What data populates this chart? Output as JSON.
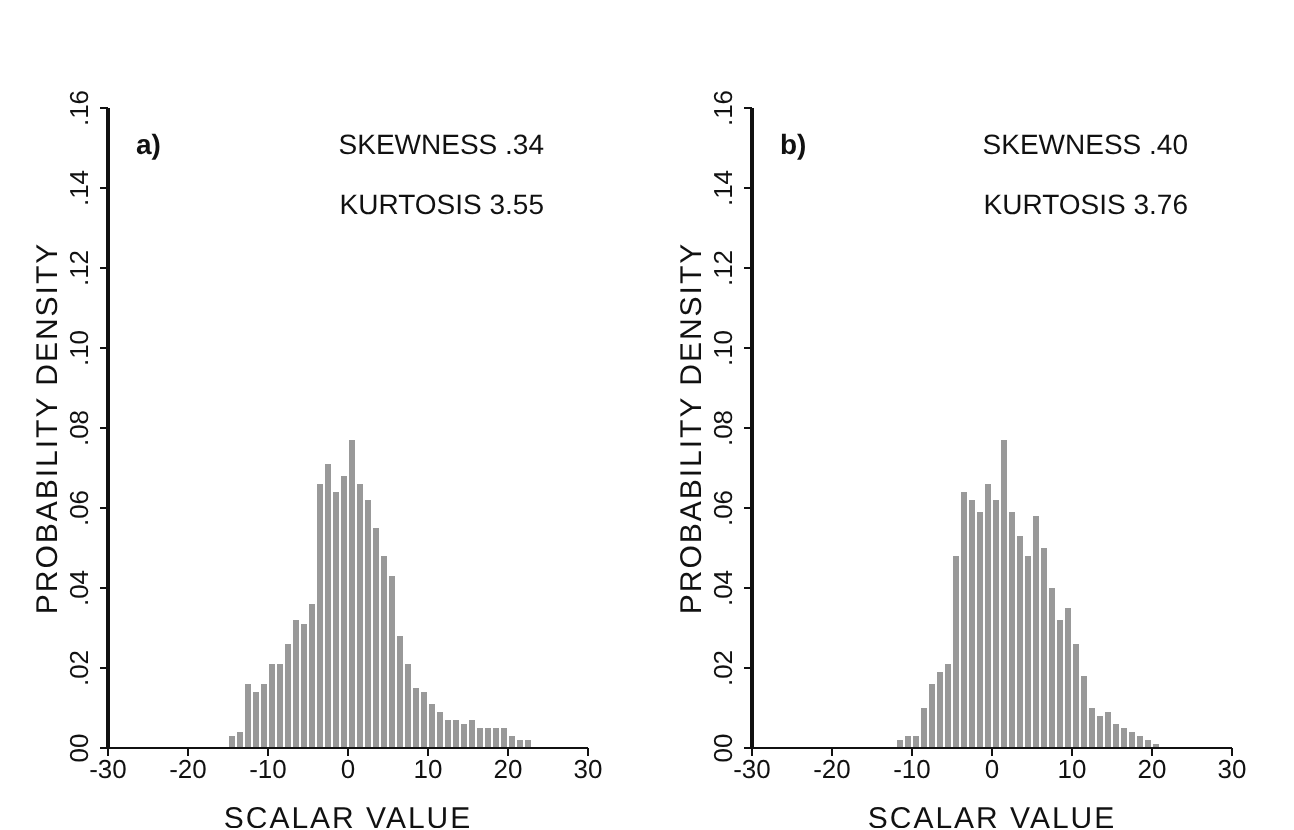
{
  "chart_data": [
    {
      "type": "histogram",
      "xlabel": "SCALAR VALUE",
      "ylabel": "PROBABILITY DENSITY",
      "annotations": [
        "a)",
        "SKEWNESS .34",
        "KURTOSIS 3.55"
      ],
      "color": "#999999",
      "bins": [
        -15,
        -14,
        -13,
        -12,
        -11,
        -10,
        -9,
        -8,
        -7,
        -6,
        -5,
        -4,
        -3,
        -2,
        -1,
        0,
        1,
        2,
        3,
        4,
        5,
        6,
        7,
        8,
        9,
        10,
        11,
        12,
        13,
        14,
        15,
        16,
        17,
        18,
        19,
        20,
        21,
        22,
        23
      ],
      "values": [
        0.003,
        0.004,
        0.016,
        0.014,
        0.016,
        0.021,
        0.021,
        0.026,
        0.032,
        0.031,
        0.036,
        0.066,
        0.071,
        0.064,
        0.068,
        0.077,
        0.066,
        0.062,
        0.055,
        0.048,
        0.043,
        0.028,
        0.021,
        0.015,
        0.014,
        0.011,
        0.009,
        0.007,
        0.007,
        0.006,
        0.007,
        0.005,
        0.005,
        0.005,
        0.005,
        0.003,
        0.002,
        0.002
      ],
      "xlim": [
        -30,
        30
      ],
      "xticks": [
        -30,
        -20,
        -10,
        0,
        10,
        20,
        30
      ],
      "ylim": [
        0,
        0.16
      ],
      "yticks": [
        {
          "value": 0,
          "label": "00"
        },
        {
          "value": 0.02,
          "label": ".02"
        },
        {
          "value": 0.04,
          "label": ".04"
        },
        {
          "value": 0.06,
          "label": ".06"
        },
        {
          "value": 0.08,
          "label": ".08"
        },
        {
          "value": 0.1,
          "label": ".10"
        },
        {
          "value": 0.12,
          "label": ".12"
        },
        {
          "value": 0.14,
          "label": ".14"
        },
        {
          "value": 0.16,
          "label": ".16"
        }
      ]
    },
    {
      "type": "histogram",
      "xlabel": "SCALAR VALUE",
      "ylabel": "PROBABILITY DENSITY",
      "annotations": [
        "b)",
        "SKEWNESS .40",
        "KURTOSIS 3.76"
      ],
      "color": "#999999",
      "bins": [
        -12,
        -11,
        -10,
        -9,
        -8,
        -7,
        -6,
        -5,
        -4,
        -3,
        -2,
        -1,
        0,
        1,
        2,
        3,
        4,
        5,
        6,
        7,
        8,
        9,
        10,
        11,
        12,
        13,
        14,
        15,
        16,
        17,
        18,
        19,
        20,
        21
      ],
      "values": [
        0.002,
        0.003,
        0.003,
        0.01,
        0.016,
        0.019,
        0.021,
        0.048,
        0.064,
        0.062,
        0.059,
        0.066,
        0.062,
        0.077,
        0.059,
        0.053,
        0.048,
        0.058,
        0.05,
        0.04,
        0.032,
        0.035,
        0.026,
        0.018,
        0.01,
        0.008,
        0.009,
        0.006,
        0.005,
        0.004,
        0.003,
        0.002,
        0.001
      ],
      "xlim": [
        -30,
        30
      ],
      "xticks": [
        -30,
        -20,
        -10,
        0,
        10,
        20,
        30
      ],
      "ylim": [
        0,
        0.16
      ],
      "yticks": [
        {
          "value": 0,
          "label": "00"
        },
        {
          "value": 0.02,
          "label": ".02"
        },
        {
          "value": 0.04,
          "label": ".04"
        },
        {
          "value": 0.06,
          "label": ".06"
        },
        {
          "value": 0.08,
          "label": ".08"
        },
        {
          "value": 0.1,
          "label": ".10"
        },
        {
          "value": 0.12,
          "label": ".12"
        },
        {
          "value": 0.14,
          "label": ".14"
        },
        {
          "value": 0.16,
          "label": ".16"
        }
      ]
    }
  ]
}
